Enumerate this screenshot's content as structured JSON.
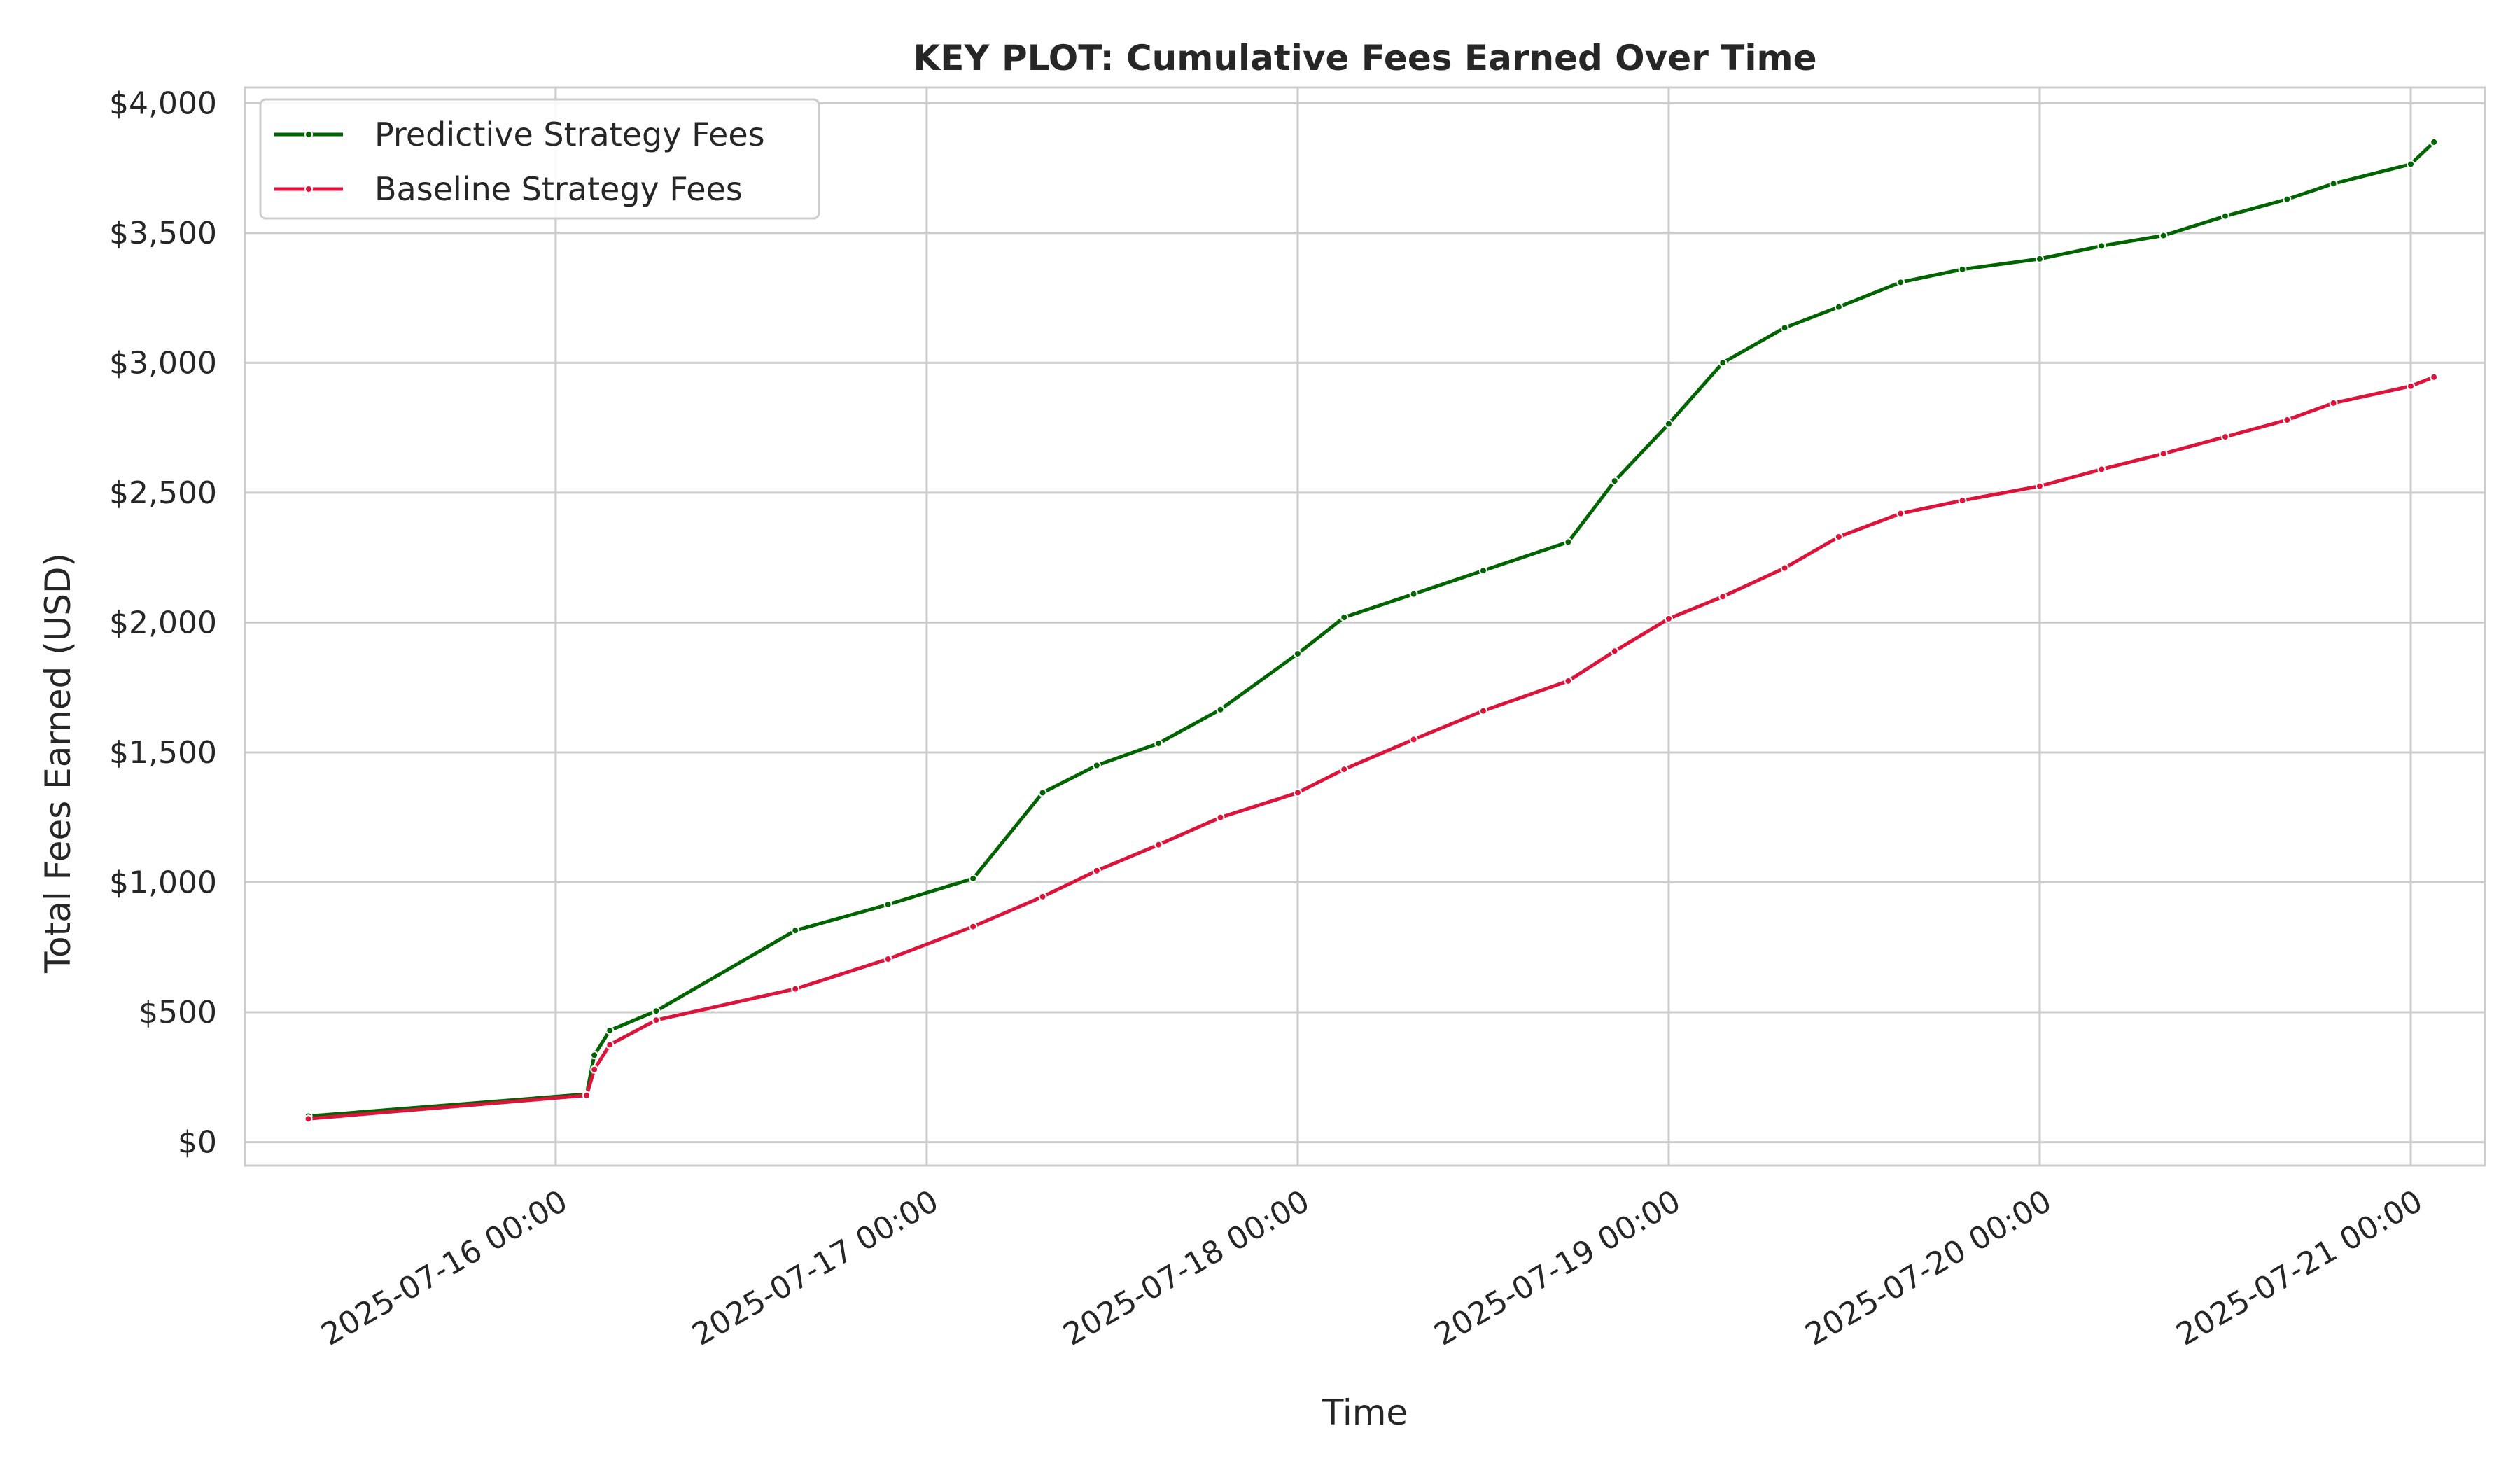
{
  "chart_data": {
    "type": "line",
    "title": "KEY PLOT: Cumulative Fees Earned Over Time",
    "xlabel": "Time",
    "ylabel": "Total Fees Earned (USD)",
    "x_type": "datetime",
    "xlim": [
      "2025-07-15 03:54",
      "2025-07-21 04:48"
    ],
    "ylim": [
      -90,
      4060
    ],
    "yticks": [
      0,
      500,
      1000,
      1500,
      2000,
      2500,
      3000,
      3500,
      4000
    ],
    "ytick_labels": [
      "$0",
      "$500",
      "$1,000",
      "$1,500",
      "$2,000",
      "$2,500",
      "$3,000",
      "$3,500",
      "$4,000"
    ],
    "xticks": [
      "2025-07-16 00:00",
      "2025-07-17 00:00",
      "2025-07-18 00:00",
      "2025-07-19 00:00",
      "2025-07-20 00:00",
      "2025-07-21 00:00"
    ],
    "xtick_labels": [
      "2025-07-16 00:00",
      "2025-07-17 00:00",
      "2025-07-18 00:00",
      "2025-07-19 00:00",
      "2025-07-20 00:00",
      "2025-07-21 00:00"
    ],
    "grid": true,
    "legend_position": "top-left",
    "series": [
      {
        "name": "Predictive Strategy Fees",
        "color": "#006400",
        "x": [
          "2025-07-15 08:00",
          "2025-07-16 02:00",
          "2025-07-16 02:30",
          "2025-07-16 03:30",
          "2025-07-16 06:30",
          "2025-07-16 15:30",
          "2025-07-16 21:30",
          "2025-07-17 03:00",
          "2025-07-17 07:30",
          "2025-07-17 11:00",
          "2025-07-17 15:00",
          "2025-07-17 19:00",
          "2025-07-18 00:00",
          "2025-07-18 03:00",
          "2025-07-18 07:30",
          "2025-07-18 12:00",
          "2025-07-18 17:30",
          "2025-07-18 20:30",
          "2025-07-19 00:00",
          "2025-07-19 03:30",
          "2025-07-19 07:30",
          "2025-07-19 11:00",
          "2025-07-19 15:00",
          "2025-07-19 19:00",
          "2025-07-20 00:00",
          "2025-07-20 04:00",
          "2025-07-20 08:00",
          "2025-07-20 12:00",
          "2025-07-20 16:00",
          "2025-07-20 19:00",
          "2025-07-21 00:00",
          "2025-07-21 01:30"
        ],
        "values": [
          100,
          185,
          335,
          430,
          505,
          815,
          915,
          1015,
          1345,
          1450,
          1535,
          1665,
          1880,
          2020,
          2110,
          2200,
          2310,
          2545,
          2765,
          3000,
          3135,
          3215,
          3310,
          3360,
          3400,
          3450,
          3490,
          3565,
          3630,
          3690,
          3765,
          3850
        ]
      },
      {
        "name": "Baseline Strategy Fees",
        "color": "#DC143C",
        "x": [
          "2025-07-15 08:00",
          "2025-07-16 02:00",
          "2025-07-16 02:30",
          "2025-07-16 03:30",
          "2025-07-16 06:30",
          "2025-07-16 15:30",
          "2025-07-16 21:30",
          "2025-07-17 03:00",
          "2025-07-17 07:30",
          "2025-07-17 11:00",
          "2025-07-17 15:00",
          "2025-07-17 19:00",
          "2025-07-18 00:00",
          "2025-07-18 03:00",
          "2025-07-18 07:30",
          "2025-07-18 12:00",
          "2025-07-18 17:30",
          "2025-07-18 20:30",
          "2025-07-19 00:00",
          "2025-07-19 03:30",
          "2025-07-19 07:30",
          "2025-07-19 11:00",
          "2025-07-19 15:00",
          "2025-07-19 19:00",
          "2025-07-20 00:00",
          "2025-07-20 04:00",
          "2025-07-20 08:00",
          "2025-07-20 12:00",
          "2025-07-20 16:00",
          "2025-07-20 19:00",
          "2025-07-21 00:00",
          "2025-07-21 01:30"
        ],
        "values": [
          90,
          180,
          280,
          375,
          470,
          590,
          705,
          830,
          945,
          1045,
          1145,
          1250,
          1345,
          1435,
          1550,
          1660,
          1775,
          1890,
          2015,
          2100,
          2210,
          2330,
          2420,
          2470,
          2525,
          2590,
          2650,
          2715,
          2780,
          2845,
          2910,
          2945
        ]
      }
    ]
  }
}
